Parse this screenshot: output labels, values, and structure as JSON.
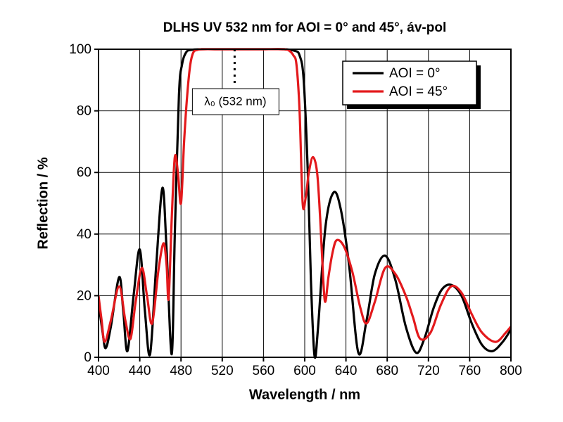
{
  "chart_data": {
    "type": "line",
    "title": "DLHS UV 532 nm for AOI = 0° and 45°, áv-pol",
    "x_label": "Wavelength / nm",
    "y_label": "Reflection / %",
    "xlim": [
      400,
      800
    ],
    "xticks": [
      400,
      440,
      480,
      520,
      560,
      600,
      640,
      680,
      720,
      760,
      800
    ],
    "ylim": [
      0,
      100
    ],
    "yticks": [
      0,
      20,
      40,
      60,
      80,
      100
    ],
    "grid": true,
    "legend": "upper right",
    "annotations": [
      {
        "text": "λ₀ (532 nm)",
        "x": 532
      }
    ],
    "series": [
      {
        "name": "AOI = 0°",
        "color": "#000000",
        "x": [
          400,
          404,
          407,
          412,
          420,
          424,
          428,
          434,
          440,
          445,
          450,
          456,
          462,
          466,
          471,
          474,
          478,
          481,
          485,
          490,
          500,
          520,
          540,
          560,
          580,
          590,
          595,
          599,
          603,
          606,
          609.5,
          613,
          620,
          628,
          635,
          643,
          652,
          660,
          668,
          678,
          688,
          698,
          708,
          716,
          725,
          733,
          742,
          752,
          762,
          772,
          782,
          792,
          800
        ],
        "values": [
          18,
          8,
          3,
          10,
          26,
          15,
          2,
          20,
          35,
          15,
          1,
          30,
          55,
          35,
          1,
          40,
          85,
          95,
          99,
          99.8,
          100,
          100,
          100,
          100,
          100,
          99.5,
          98,
          90,
          60,
          25,
          0.5,
          10,
          42,
          53.5,
          48,
          30,
          1.5,
          12,
          27,
          33,
          25,
          10,
          1.5,
          6,
          16,
          22,
          23.5,
          20,
          11,
          4,
          2,
          5,
          9
        ]
      },
      {
        "name": "AOI = 45°",
        "color": "#e3191c",
        "x": [
          400,
          403,
          406,
          412,
          420,
          426,
          431,
          436,
          442,
          447,
          452,
          458,
          463,
          466,
          468,
          471,
          474,
          477,
          480,
          483,
          486,
          489,
          492,
          496,
          500,
          520,
          540,
          560,
          580,
          585,
          589,
          592,
          595,
          598,
          601,
          604,
          608,
          612,
          615,
          618,
          620,
          623,
          627,
          631,
          638,
          646,
          654,
          660,
          668,
          678,
          688,
          698,
          705,
          712,
          722,
          732,
          742,
          752,
          762,
          772,
          785,
          795,
          800
        ],
        "values": [
          20,
          12,
          5,
          12,
          23,
          12,
          6,
          18,
          29,
          20,
          11,
          28,
          37,
          30,
          19,
          45,
          65,
          60,
          50,
          70,
          85,
          95,
          99,
          99.8,
          100,
          100,
          100,
          100,
          100,
          99.5,
          98,
          95,
          80,
          50,
          52,
          60,
          65,
          60,
          45,
          25,
          18,
          26,
          34,
          38,
          36,
          28,
          16,
          11,
          18,
          29,
          27,
          20,
          13,
          6,
          8,
          17,
          23,
          21,
          14,
          8,
          5,
          8,
          10
        ]
      }
    ]
  }
}
